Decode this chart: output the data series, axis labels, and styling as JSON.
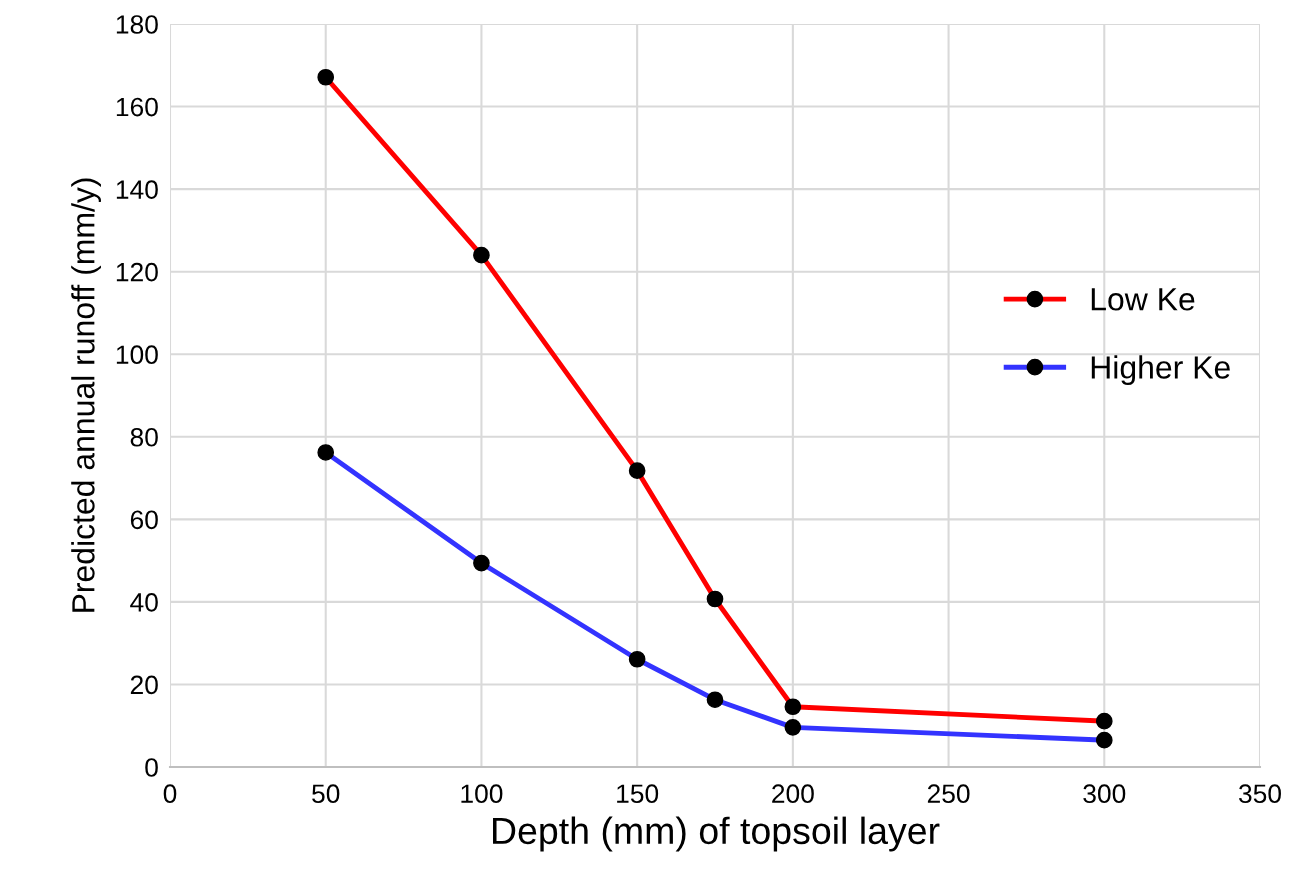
{
  "chart_data": {
    "type": "line",
    "xlabel": "Depth (mm) of topsoil layer",
    "ylabel": "Predicted annual runoff (mm/y)",
    "x": [
      50,
      100,
      150,
      175,
      200,
      300
    ],
    "series": [
      {
        "name": "Low Ke",
        "color": "#ff0000",
        "values": [
          167.1,
          124.0,
          71.8,
          40.7,
          14.6,
          11.1
        ]
      },
      {
        "name": "Higher Ke",
        "color": "#3333ff",
        "values": [
          76.2,
          49.4,
          26.1,
          16.3,
          9.6,
          6.5
        ]
      }
    ],
    "xlim": [
      0,
      350
    ],
    "xticks": [
      0,
      50,
      100,
      150,
      200,
      250,
      300,
      350
    ],
    "ylim": [
      0,
      180
    ],
    "yticks": [
      0,
      20,
      40,
      60,
      80,
      100,
      120,
      140,
      160,
      180
    ],
    "grid": true,
    "legend": "right",
    "marker": "circle",
    "line_style": "solid"
  }
}
